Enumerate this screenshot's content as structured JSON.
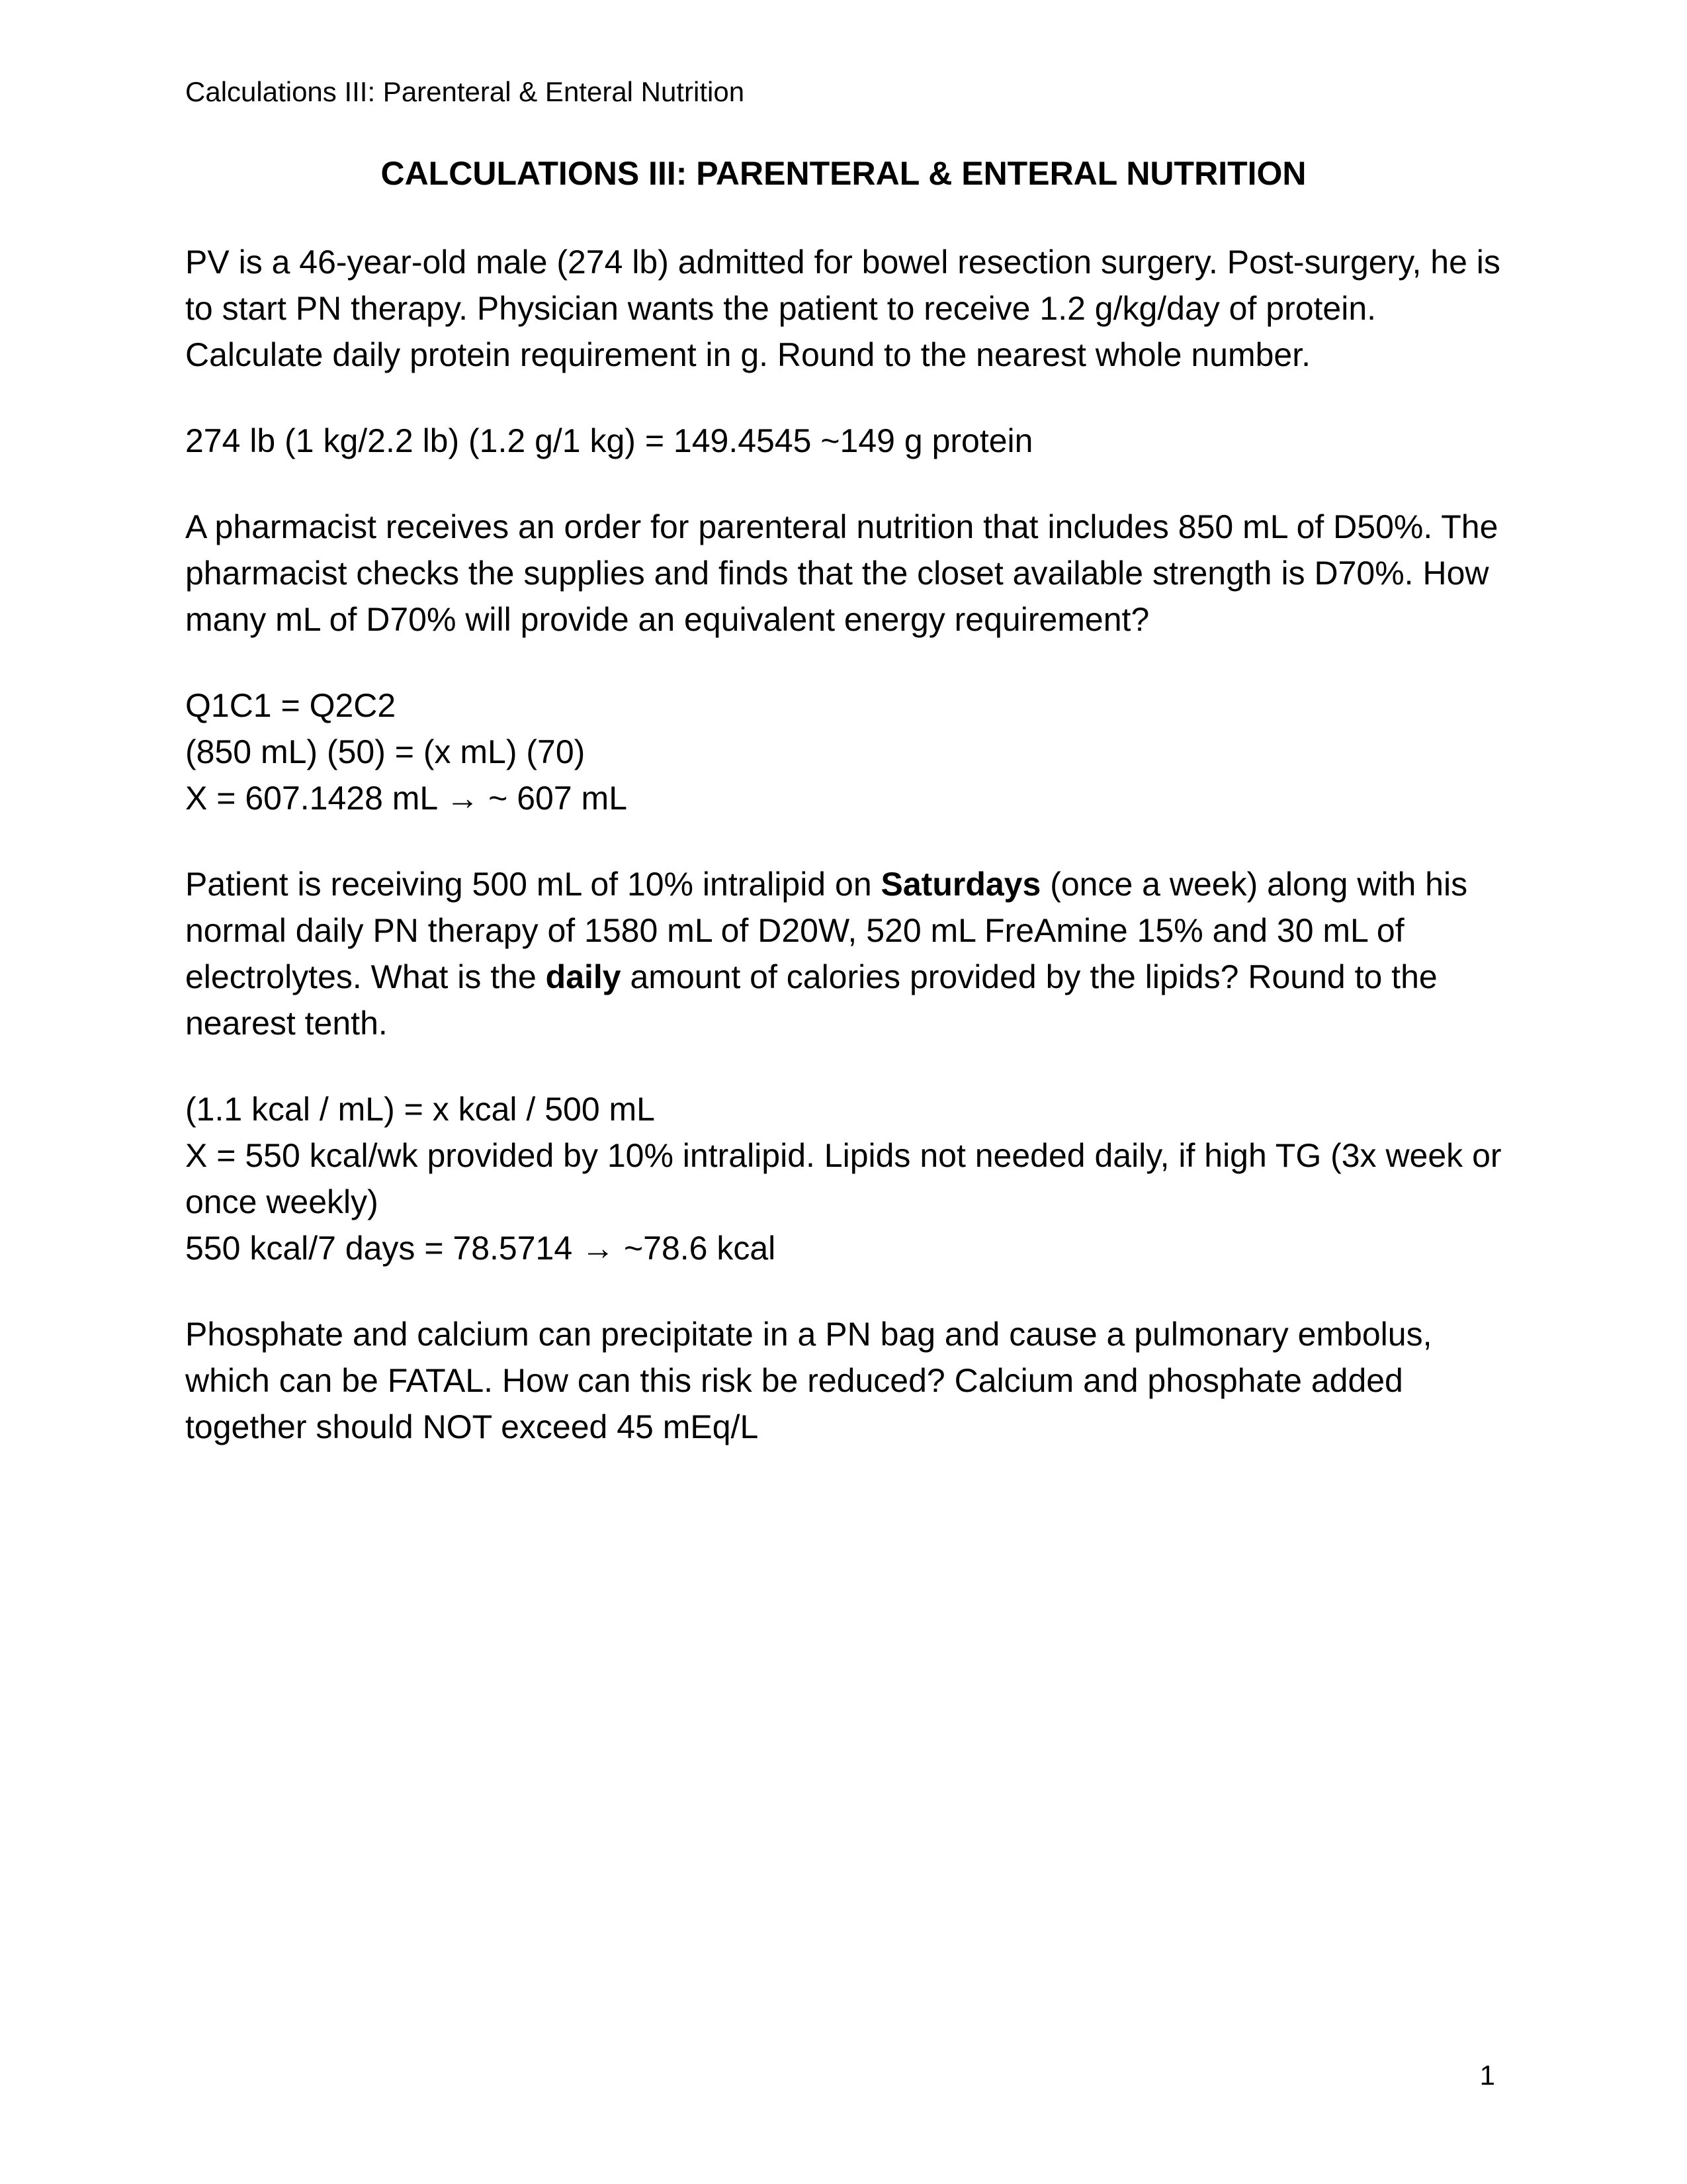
{
  "header": "Calculations III: Parenteral & Enteral Nutrition",
  "title": "CALCULATIONS III: PARENTERAL & ENTERAL NUTRITION",
  "q1": {
    "prompt": "PV is a 46-year-old male (274 lb) admitted for bowel resection surgery. Post-surgery, he is to start PN therapy. Physician wants the patient to receive 1.2 g/kg/day of protein. Calculate daily protein requirement in g. Round to the nearest whole number.",
    "calc": "274 lb (1 kg/2.2 lb) (1.2 g/1 kg) = 149.4545 ~149 g protein"
  },
  "q2": {
    "prompt": "A pharmacist receives an order for parenteral nutrition that includes 850 mL of D50%. The pharmacist checks the supplies and finds that the closet available strength is D70%. How many mL of D70% will provide an equivalent energy requirement?",
    "calc_line1": "Q1C1 = Q2C2",
    "calc_line2": "(850 mL) (50) = (x mL) (70)",
    "calc_line3": "X = 607.1428 mL → ~ 607 mL"
  },
  "q3": {
    "prompt_part1": "Patient is receiving 500 mL of 10% intralipid on ",
    "bold1": "Saturdays",
    "prompt_part2": " (once a week) along with his normal daily PN therapy of 1580 mL of D20W, 520 mL FreAmine 15% and 30 mL of electrolytes. What is the ",
    "bold2": "daily",
    "prompt_part3": " amount of calories provided by the lipids? Round to the nearest tenth.",
    "calc_line1": "(1.1 kcal / mL) = x kcal / 500 mL",
    "calc_line2": "X = 550 kcal/wk provided by 10% intralipid. Lipids not needed daily, if high TG (3x week or once weekly)",
    "calc_line3": "550 kcal/7 days = 78.5714 → ~78.6 kcal"
  },
  "q4": {
    "prompt": "Phosphate and calcium can precipitate in a PN bag and cause a pulmonary embolus, which can be FATAL. How can this risk be reduced? Calcium and phosphate added together should NOT exceed 45 mEq/L"
  },
  "page_number": "1",
  "colors": {
    "background": "#ffffff",
    "text": "#000000"
  },
  "typography": {
    "header_fontsize": 42,
    "title_fontsize": 50,
    "body_fontsize": 50,
    "title_weight": 700,
    "body_weight": 400,
    "line_height": 1.4
  }
}
